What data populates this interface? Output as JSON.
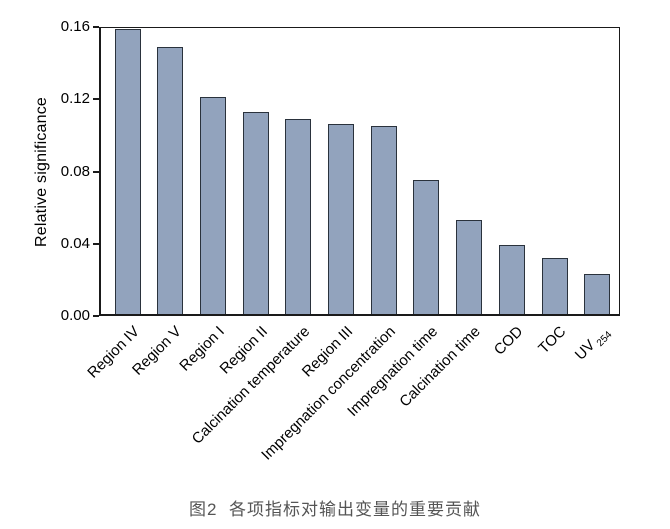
{
  "figure": {
    "caption": "图2  各项指标对输出变量的重要贡献"
  },
  "chart_data": {
    "type": "bar",
    "ylabel": "Relative significance",
    "ylim": [
      0,
      0.16
    ],
    "yticks": [
      0.16,
      0.12,
      0.08,
      0.04,
      0.0
    ],
    "ytick_labels": [
      "0.16",
      "0.12",
      "0.08",
      "0.04",
      "0.00"
    ],
    "categories": [
      {
        "label": "Region IV",
        "sub": ""
      },
      {
        "label": "Region V",
        "sub": ""
      },
      {
        "label": "Region I",
        "sub": ""
      },
      {
        "label": "Region II",
        "sub": ""
      },
      {
        "label": "Calcination temperature",
        "sub": ""
      },
      {
        "label": "Region III",
        "sub": ""
      },
      {
        "label": "Impregnation concentration",
        "sub": ""
      },
      {
        "label": "Impregnation time",
        "sub": ""
      },
      {
        "label": "Calcination time",
        "sub": ""
      },
      {
        "label": "COD",
        "sub": ""
      },
      {
        "label": "TOC",
        "sub": ""
      },
      {
        "label": "UV",
        "sub": "254"
      }
    ],
    "values": [
      0.158,
      0.148,
      0.12,
      0.112,
      0.108,
      0.105,
      0.104,
      0.074,
      0.052,
      0.038,
      0.031,
      0.022
    ],
    "grid": false,
    "legend": false,
    "bar_fill_color": "#92a3bd",
    "bar_border_color": "#2a323c",
    "axis_color": "#1a1a1a"
  }
}
